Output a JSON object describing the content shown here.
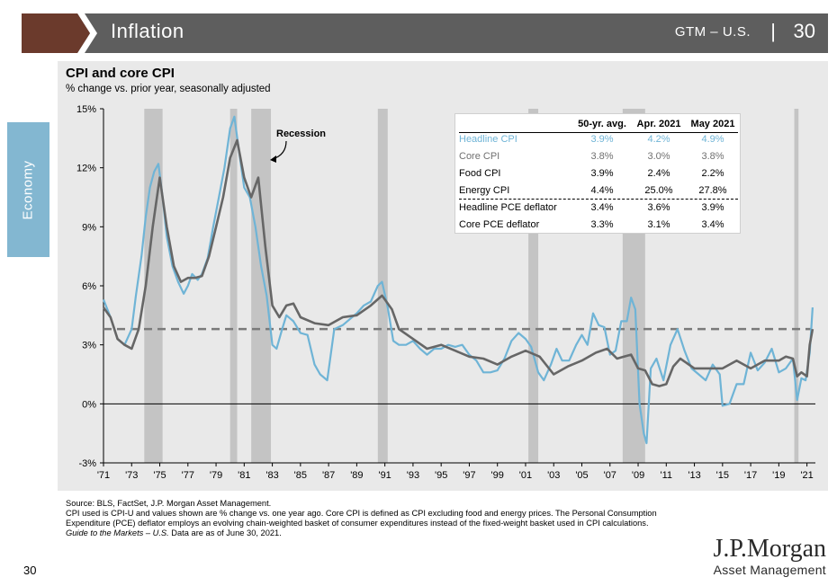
{
  "header": {
    "title": "Inflation",
    "gtm": "GTM – U.S.",
    "separator": "|",
    "page": "30",
    "bar_color": "#5e5e5e",
    "chevron_color": "#6b3a2c"
  },
  "side_tab": {
    "label": "Economy",
    "color": "#83b7d1"
  },
  "chart": {
    "title": "CPI and core CPI",
    "subtitle": "% change vs. prior year, seasonally adjusted",
    "recession_label": "Recession"
  },
  "table": {
    "headers": [
      "50-yr. avg.",
      "Apr. 2021",
      "May 2021"
    ],
    "rows": [
      {
        "label": "Headline CPI",
        "values": [
          "3.9%",
          "4.2%",
          "4.9%"
        ]
      },
      {
        "label": "Core CPI",
        "values": [
          "3.8%",
          "3.0%",
          "3.8%"
        ]
      },
      {
        "label": "Food CPI",
        "values": [
          "3.9%",
          "2.4%",
          "2.2%"
        ]
      },
      {
        "label": "Energy CPI",
        "values": [
          "4.4%",
          "25.0%",
          "27.8%"
        ]
      },
      {
        "label": "Headline PCE deflator",
        "values": [
          "3.4%",
          "3.6%",
          "3.9%"
        ]
      },
      {
        "label": "Core PCE deflator",
        "values": [
          "3.3%",
          "3.1%",
          "3.4%"
        ]
      }
    ]
  },
  "footer": {
    "source": "Source: BLS, FactSet, J.P. Morgan Asset Management.",
    "note": "CPI used is CPI-U and values shown are % change vs. one year ago. Core CPI is defined as CPI excluding food and energy prices. The Personal Consumption Expenditure (PCE) deflator employs an evolving chain-weighted basket of consumer expenditures instead of the fixed-weight basket used in CPI calculations.",
    "gtm_italic": "Guide to the Markets – U.S.",
    "as_of": " Data are as of June 30, 2021."
  },
  "page_number": "30",
  "logo": {
    "main": "J.P.Morgan",
    "sub": "Asset Management"
  },
  "chart_data": {
    "type": "line",
    "title": "CPI and core CPI",
    "subtitle": "% change vs. prior year, seasonally adjusted",
    "xlim": [
      1971,
      2021.6
    ],
    "ylim": [
      -3,
      15
    ],
    "yticks": [
      -3,
      0,
      3,
      6,
      9,
      12,
      15
    ],
    "ytick_labels": [
      "-3%",
      "0%",
      "3%",
      "6%",
      "9%",
      "12%",
      "15%"
    ],
    "xticks": [
      1971,
      1973,
      1975,
      1977,
      1979,
      1981,
      1983,
      1985,
      1987,
      1989,
      1991,
      1993,
      1995,
      1997,
      1999,
      2001,
      2003,
      2005,
      2007,
      2009,
      2011,
      2013,
      2015,
      2017,
      2019,
      2021
    ],
    "xtick_labels": [
      "'71",
      "'73",
      "'75",
      "'77",
      "'79",
      "'81",
      "'83",
      "'85",
      "'87",
      "'89",
      "'91",
      "'93",
      "'95",
      "'97",
      "'99",
      "'01",
      "'03",
      "'05",
      "'07",
      "'09",
      "'11",
      "'13",
      "'15",
      "'17",
      "'19",
      "'21"
    ],
    "recessions": [
      [
        1973.9,
        1975.2
      ],
      [
        1980.0,
        1980.5
      ],
      [
        1981.5,
        1982.9
      ],
      [
        1990.5,
        1991.2
      ],
      [
        2001.2,
        2001.9
      ],
      [
        2007.9,
        2009.5
      ],
      [
        2020.1,
        2020.4
      ]
    ],
    "reference_line": {
      "name": "50-yr. avg. core CPI",
      "value": 3.8
    },
    "series": [
      {
        "name": "Headline CPI",
        "color": "#6fb4d6",
        "x": [
          1971.0,
          1971.5,
          1972.0,
          1972.5,
          1973.0,
          1973.3,
          1973.7,
          1974.0,
          1974.3,
          1974.6,
          1974.9,
          1975.2,
          1975.5,
          1975.9,
          1976.3,
          1976.7,
          1977.0,
          1977.3,
          1977.7,
          1978.0,
          1978.4,
          1978.8,
          1979.2,
          1979.6,
          1980.0,
          1980.3,
          1980.6,
          1981.0,
          1981.4,
          1981.8,
          1982.2,
          1982.6,
          1983.0,
          1983.3,
          1983.7,
          1984.0,
          1984.5,
          1985.0,
          1985.5,
          1986.0,
          1986.4,
          1986.9,
          1987.4,
          1988.0,
          1988.5,
          1989.0,
          1989.5,
          1990.0,
          1990.5,
          1990.8,
          1991.2,
          1991.6,
          1992.0,
          1992.5,
          1993.0,
          1993.5,
          1994.0,
          1994.5,
          1995.0,
          1995.5,
          1996.0,
          1996.5,
          1997.0,
          1997.5,
          1998.0,
          1998.5,
          1999.0,
          1999.5,
          2000.0,
          2000.5,
          2001.0,
          2001.4,
          2001.9,
          2002.3,
          2002.8,
          2003.2,
          2003.6,
          2004.1,
          2004.6,
          2005.0,
          2005.4,
          2005.8,
          2006.2,
          2006.6,
          2007.0,
          2007.4,
          2007.8,
          2008.2,
          2008.5,
          2008.8,
          2009.1,
          2009.4,
          2009.6,
          2009.9,
          2010.3,
          2010.8,
          2011.3,
          2011.8,
          2012.3,
          2012.8,
          2013.3,
          2013.8,
          2014.3,
          2014.8,
          2015.0,
          2015.5,
          2016.0,
          2016.5,
          2017.0,
          2017.5,
          2018.0,
          2018.5,
          2019.0,
          2019.5,
          2020.0,
          2020.3,
          2020.6,
          2020.9,
          2021.2,
          2021.4
        ],
        "y": [
          5.3,
          4.4,
          3.3,
          3.0,
          3.8,
          5.5,
          7.5,
          9.5,
          11.0,
          11.8,
          12.2,
          10.5,
          8.5,
          7.0,
          6.2,
          5.6,
          6.0,
          6.6,
          6.3,
          6.6,
          7.4,
          9.0,
          10.5,
          12.0,
          14.0,
          14.6,
          13.0,
          11.0,
          10.5,
          9.0,
          7.0,
          5.5,
          3.0,
          2.8,
          3.8,
          4.5,
          4.2,
          3.6,
          3.5,
          2.0,
          1.5,
          1.2,
          3.8,
          4.0,
          4.3,
          4.6,
          5.0,
          5.2,
          6.0,
          6.2,
          4.9,
          3.2,
          3.0,
          3.0,
          3.2,
          2.8,
          2.5,
          2.8,
          2.8,
          3.0,
          2.9,
          3.0,
          2.5,
          2.2,
          1.6,
          1.6,
          1.7,
          2.3,
          3.2,
          3.6,
          3.3,
          2.9,
          1.6,
          1.2,
          2.0,
          2.8,
          2.2,
          2.2,
          3.0,
          3.5,
          3.0,
          4.6,
          4.0,
          3.9,
          2.5,
          2.7,
          4.2,
          4.2,
          5.4,
          4.8,
          0.0,
          -1.5,
          -2.0,
          1.8,
          2.3,
          1.2,
          3.0,
          3.8,
          2.7,
          1.8,
          1.5,
          1.2,
          2.0,
          1.5,
          -0.1,
          0.0,
          1.0,
          1.0,
          2.6,
          1.7,
          2.1,
          2.8,
          1.6,
          1.8,
          2.3,
          0.2,
          1.3,
          1.2,
          2.6,
          4.9
        ]
      },
      {
        "name": "Core CPI",
        "color": "#666666",
        "x": [
          1971.0,
          1971.5,
          1972.0,
          1972.5,
          1973.0,
          1973.5,
          1974.0,
          1974.5,
          1975.0,
          1975.5,
          1976.0,
          1976.5,
          1977.0,
          1977.5,
          1978.0,
          1978.5,
          1979.0,
          1979.5,
          1980.0,
          1980.5,
          1981.0,
          1981.5,
          1982.0,
          1982.5,
          1983.0,
          1983.5,
          1984.0,
          1984.5,
          1985.0,
          1986.0,
          1987.0,
          1988.0,
          1989.0,
          1990.0,
          1990.8,
          1991.5,
          1992.0,
          1993.0,
          1994.0,
          1995.0,
          1996.0,
          1997.0,
          1998.0,
          1999.0,
          2000.0,
          2001.0,
          2002.0,
          2003.0,
          2004.0,
          2005.0,
          2006.0,
          2006.8,
          2007.5,
          2008.0,
          2008.5,
          2009.0,
          2009.5,
          2010.0,
          2010.5,
          2011.0,
          2011.5,
          2012.0,
          2013.0,
          2014.0,
          2015.0,
          2016.0,
          2017.0,
          2018.0,
          2019.0,
          2019.5,
          2020.0,
          2020.3,
          2020.6,
          2021.0,
          2021.2,
          2021.4
        ],
        "y": [
          4.9,
          4.4,
          3.3,
          3.0,
          2.8,
          3.8,
          6.0,
          9.0,
          11.5,
          9.0,
          7.0,
          6.2,
          6.4,
          6.4,
          6.5,
          7.5,
          9.0,
          10.5,
          12.5,
          13.4,
          11.5,
          10.5,
          11.5,
          8.0,
          5.0,
          4.4,
          5.0,
          5.1,
          4.4,
          4.1,
          4.0,
          4.4,
          4.5,
          5.0,
          5.5,
          4.8,
          3.8,
          3.3,
          2.8,
          3.0,
          2.7,
          2.4,
          2.3,
          2.0,
          2.4,
          2.7,
          2.4,
          1.5,
          1.9,
          2.2,
          2.6,
          2.8,
          2.3,
          2.4,
          2.5,
          1.8,
          1.7,
          1.0,
          0.9,
          1.0,
          1.9,
          2.3,
          1.8,
          1.8,
          1.8,
          2.2,
          1.8,
          2.2,
          2.2,
          2.4,
          2.3,
          1.4,
          1.6,
          1.4,
          3.0,
          3.8
        ]
      }
    ]
  }
}
